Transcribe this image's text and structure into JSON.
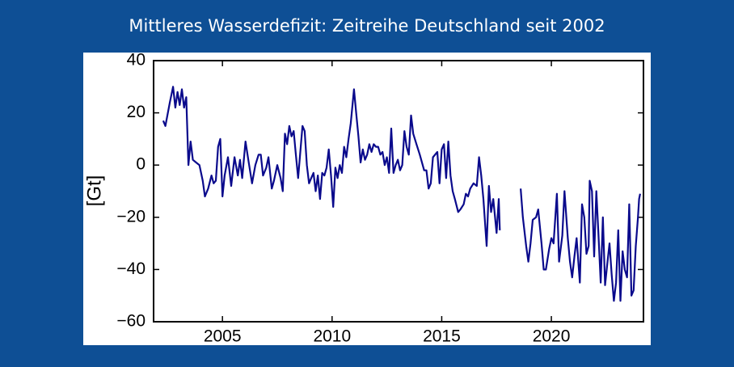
{
  "chart_data": {
    "type": "line",
    "title": "Mittleres Wasserdefizit: Zeitreihe Deutschland seit 2002",
    "y_label": "[Gt]",
    "color": "#0a0a8c",
    "xlim": [
      2001.86,
      2024.2
    ],
    "xticks": [
      2005,
      2010,
      2015,
      2020
    ],
    "ylim": [
      -60,
      40
    ],
    "yticks": [
      {
        "value": -60,
        "label": "−60"
      },
      {
        "value": -40,
        "label": "−40"
      },
      {
        "value": -20,
        "label": "−20"
      },
      0,
      20,
      40
    ],
    "x": [
      2002.3,
      2002.4,
      2002.6,
      2002.75,
      2002.85,
      2002.95,
      2003.05,
      2003.15,
      2003.25,
      2003.35,
      2003.45,
      2003.55,
      2003.65,
      2003.8,
      2003.95,
      2004.1,
      2004.2,
      2004.35,
      2004.5,
      2004.6,
      2004.7,
      2004.8,
      2004.9,
      2005.0,
      2005.1,
      2005.25,
      2005.4,
      2005.55,
      2005.7,
      2005.8,
      2005.9,
      2006.05,
      2006.2,
      2006.35,
      2006.5,
      2006.65,
      2006.75,
      2006.85,
      2007.0,
      2007.1,
      2007.25,
      2007.35,
      2007.5,
      2007.65,
      2007.75,
      2007.85,
      2007.95,
      2008.05,
      2008.15,
      2008.25,
      2008.35,
      2008.45,
      2008.55,
      2008.65,
      2008.75,
      2008.85,
      2008.95,
      2009.05,
      2009.15,
      2009.25,
      2009.35,
      2009.45,
      2009.55,
      2009.65,
      2009.75,
      2009.85,
      2009.95,
      2010.05,
      2010.15,
      2010.25,
      2010.35,
      2010.45,
      2010.55,
      2010.65,
      2010.75,
      2010.85,
      2011.0,
      2011.1,
      2011.2,
      2011.3,
      2011.4,
      2011.5,
      2011.6,
      2011.7,
      2011.8,
      2011.9,
      2012.0,
      2012.1,
      2012.2,
      2012.3,
      2012.4,
      2012.5,
      2012.6,
      2012.7,
      2012.8,
      2012.9,
      2013.0,
      2013.1,
      2013.2,
      2013.3,
      2013.4,
      2013.5,
      2013.6,
      2013.7,
      2013.85,
      2014.0,
      2014.2,
      2014.3,
      2014.4,
      2014.5,
      2014.6,
      2014.8,
      2014.9,
      2015.0,
      2015.1,
      2015.2,
      2015.3,
      2015.4,
      2015.5,
      2015.6,
      2015.75,
      2015.85,
      2016.0,
      2016.1,
      2016.2,
      2016.3,
      2016.45,
      2016.6,
      2016.7,
      2016.8,
      2016.9,
      2017.05,
      2017.15,
      2017.25,
      2017.35,
      2017.5,
      2017.6,
      2017.65,
      2018.0,
      2018.6,
      2018.7,
      2018.85,
      2018.95,
      2019.05,
      2019.15,
      2019.3,
      2019.4,
      2019.55,
      2019.65,
      2019.75,
      2019.9,
      2020.0,
      2020.1,
      2020.25,
      2020.35,
      2020.5,
      2020.6,
      2020.75,
      2020.85,
      2020.95,
      2021.05,
      2021.15,
      2021.3,
      2021.4,
      2021.5,
      2021.6,
      2021.7,
      2021.75,
      2021.85,
      2021.95,
      2022.05,
      2022.15,
      2022.25,
      2022.35,
      2022.45,
      2022.55,
      2022.65,
      2022.75,
      2022.85,
      2022.95,
      2023.05,
      2023.15,
      2023.25,
      2023.35,
      2023.45,
      2023.55,
      2023.65,
      2023.75,
      2023.85,
      2023.95,
      2024.0,
      2024.05
    ],
    "values": [
      17,
      15,
      24,
      30,
      22,
      28,
      23,
      29,
      22,
      26,
      0,
      9,
      2,
      1,
      0,
      -6,
      -12,
      -9,
      -4,
      -7,
      -6,
      7,
      10,
      -12,
      -4,
      3,
      -8,
      3,
      -4,
      2,
      -5,
      9,
      1,
      -7,
      0,
      4,
      4,
      -4,
      -1,
      3,
      -9,
      -6,
      0,
      -5,
      -10,
      12,
      8,
      15,
      11,
      13,
      4,
      -5,
      5,
      15,
      13,
      0,
      -7,
      -5,
      -3,
      -10,
      -4,
      -13,
      -3,
      -4,
      -1,
      6,
      -4,
      -16,
      -1,
      -5,
      0,
      -3,
      7,
      3,
      10,
      16,
      29,
      20,
      11,
      1,
      6,
      2,
      4,
      8,
      5,
      8,
      7,
      7,
      4,
      5,
      0,
      3,
      -3,
      14,
      -3,
      0,
      2,
      -2,
      0,
      13,
      7,
      4,
      19,
      12,
      8,
      4,
      -2,
      -2,
      -9,
      -7,
      3,
      5,
      -7,
      6,
      8,
      -5,
      9,
      -4,
      -10,
      -13,
      -18,
      -17,
      -15,
      -11,
      -12,
      -9,
      -7,
      -8,
      3,
      -4,
      -13,
      -31,
      -8,
      -18,
      -13,
      -26,
      -13,
      -25,
      null,
      -9,
      -20,
      -31,
      -37,
      -30,
      -21,
      -20,
      -17,
      -30,
      -40,
      -40,
      -32,
      -28,
      -30,
      -11,
      -37,
      -27,
      -10,
      -28,
      -37,
      -43,
      -35,
      -28,
      -45,
      -15,
      -20,
      -34,
      -31,
      -6,
      -10,
      -35,
      -10,
      -27,
      -45,
      -20,
      -46,
      -38,
      -30,
      -42,
      -52,
      -45,
      -25,
      -52,
      -33,
      -40,
      -43,
      -15,
      -50,
      -48,
      -31,
      -20,
      -13,
      -11
    ]
  }
}
